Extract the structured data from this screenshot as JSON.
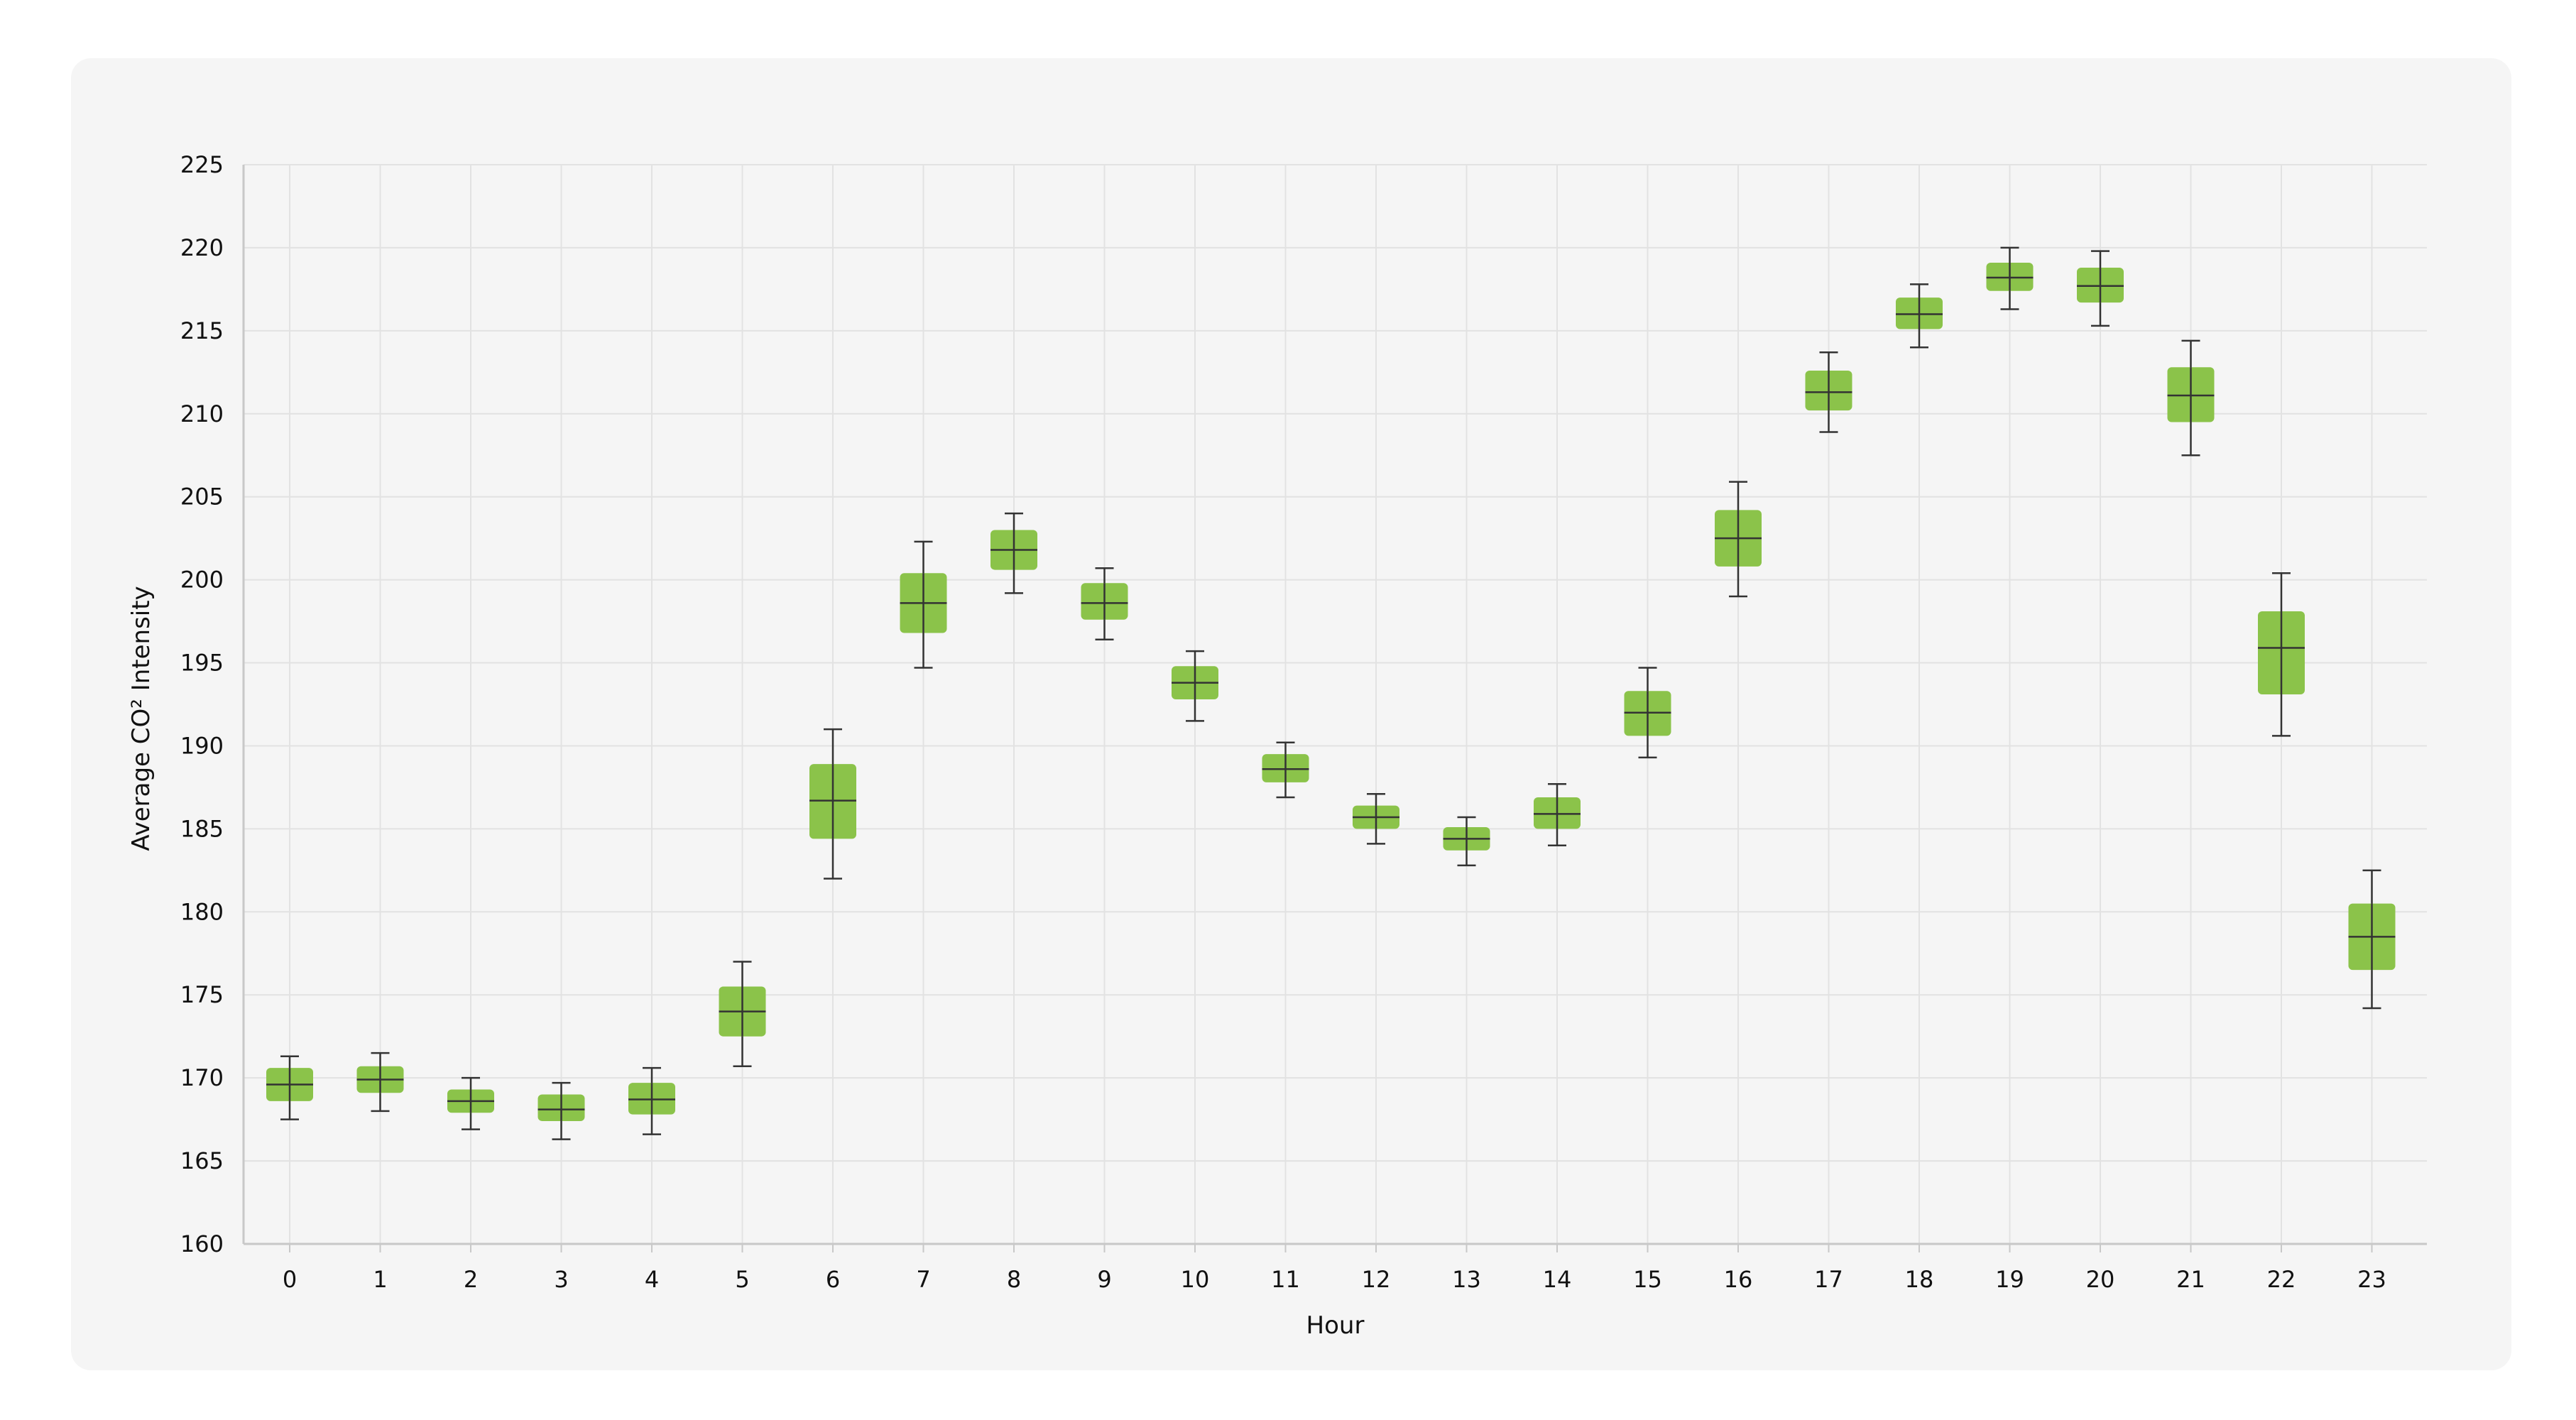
{
  "chart_data": {
    "type": "boxplot",
    "title": "",
    "xlabel": "Hour",
    "ylabel": "Average CO² Intensity",
    "ylim": [
      160,
      225
    ],
    "yticks": [
      160,
      165,
      170,
      175,
      180,
      185,
      190,
      195,
      200,
      205,
      210,
      215,
      220,
      225
    ],
    "grid": true,
    "box_color": "#8bc34a",
    "line_color": "#333333",
    "categories": [
      "0",
      "1",
      "2",
      "3",
      "4",
      "5",
      "6",
      "7",
      "8",
      "9",
      "10",
      "11",
      "12",
      "13",
      "14",
      "15",
      "16",
      "17",
      "18",
      "19",
      "20",
      "21",
      "22",
      "23"
    ],
    "boxes": [
      {
        "low": 167.5,
        "q1": 168.6,
        "median": 169.6,
        "q3": 170.6,
        "high": 171.3
      },
      {
        "low": 168.0,
        "q1": 169.1,
        "median": 169.9,
        "q3": 170.7,
        "high": 171.5
      },
      {
        "low": 166.9,
        "q1": 167.9,
        "median": 168.6,
        "q3": 169.3,
        "high": 170.0
      },
      {
        "low": 166.3,
        "q1": 167.4,
        "median": 168.1,
        "q3": 169.0,
        "high": 169.7
      },
      {
        "low": 166.6,
        "q1": 167.8,
        "median": 168.7,
        "q3": 169.7,
        "high": 170.6
      },
      {
        "low": 170.7,
        "q1": 172.5,
        "median": 174.0,
        "q3": 175.5,
        "high": 177.0
      },
      {
        "low": 182.0,
        "q1": 184.4,
        "median": 186.7,
        "q3": 188.9,
        "high": 191.0
      },
      {
        "low": 194.7,
        "q1": 196.8,
        "median": 198.6,
        "q3": 200.4,
        "high": 202.3
      },
      {
        "low": 199.2,
        "q1": 200.6,
        "median": 201.8,
        "q3": 203.0,
        "high": 204.0
      },
      {
        "low": 196.4,
        "q1": 197.6,
        "median": 198.6,
        "q3": 199.8,
        "high": 200.7
      },
      {
        "low": 191.5,
        "q1": 192.8,
        "median": 193.8,
        "q3": 194.8,
        "high": 195.7
      },
      {
        "low": 186.9,
        "q1": 187.8,
        "median": 188.6,
        "q3": 189.5,
        "high": 190.2
      },
      {
        "low": 184.1,
        "q1": 185.0,
        "median": 185.7,
        "q3": 186.4,
        "high": 187.1
      },
      {
        "low": 182.8,
        "q1": 183.7,
        "median": 184.4,
        "q3": 185.1,
        "high": 185.7
      },
      {
        "low": 184.0,
        "q1": 185.0,
        "median": 185.9,
        "q3": 186.9,
        "high": 187.7
      },
      {
        "low": 189.3,
        "q1": 190.6,
        "median": 192.0,
        "q3": 193.3,
        "high": 194.7
      },
      {
        "low": 199.0,
        "q1": 200.8,
        "median": 202.5,
        "q3": 204.2,
        "high": 205.9
      },
      {
        "low": 208.9,
        "q1": 210.2,
        "median": 211.3,
        "q3": 212.6,
        "high": 213.7
      },
      {
        "low": 214.0,
        "q1": 215.1,
        "median": 216.0,
        "q3": 217.0,
        "high": 217.8
      },
      {
        "low": 216.3,
        "q1": 217.4,
        "median": 218.2,
        "q3": 219.1,
        "high": 220.0
      },
      {
        "low": 215.3,
        "q1": 216.7,
        "median": 217.7,
        "q3": 218.8,
        "high": 219.8
      },
      {
        "low": 207.5,
        "q1": 209.5,
        "median": 211.1,
        "q3": 212.8,
        "high": 214.4
      },
      {
        "low": 190.6,
        "q1": 193.1,
        "median": 195.9,
        "q3": 198.1,
        "high": 200.4
      },
      {
        "low": 174.2,
        "q1": 176.5,
        "median": 178.5,
        "q3": 180.5,
        "high": 182.5
      }
    ]
  }
}
